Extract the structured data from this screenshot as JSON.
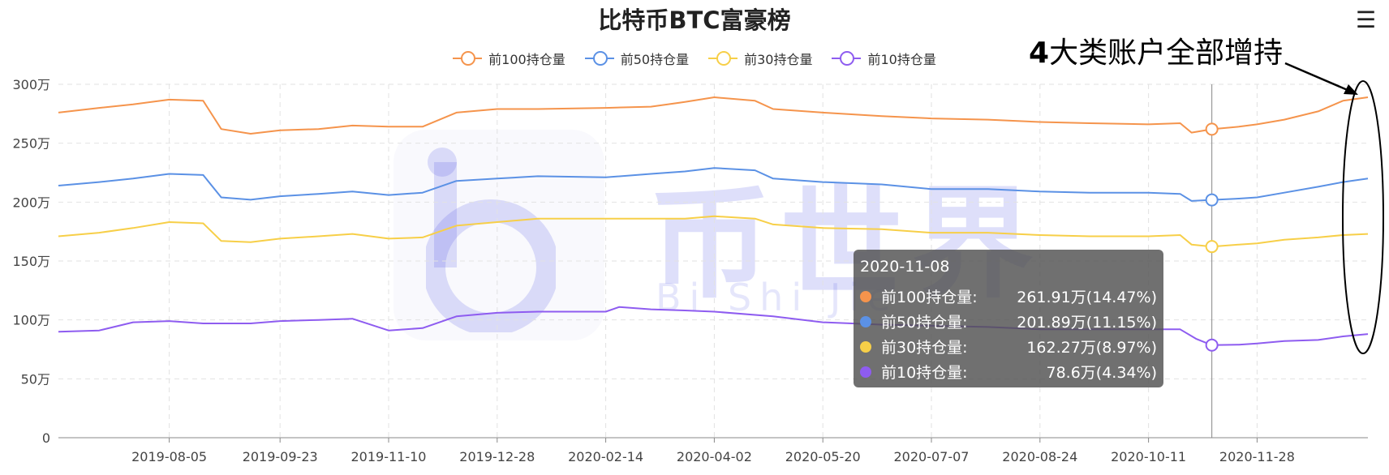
{
  "chart_data": {
    "type": "line",
    "title": "比特币BTC富豪榜",
    "x_tick_labels": [
      "2019-08-05",
      "2019-09-23",
      "2019-11-10",
      "2019-12-28",
      "2020-02-14",
      "2020-04-02",
      "2020-05-20",
      "2020-07-07",
      "2020-08-24",
      "2020-10-11",
      "2020-11-28"
    ],
    "xlim": [
      "2019-06-17",
      "2021-01-16"
    ],
    "y_tick_labels": [
      "0",
      "50万",
      "100万",
      "150万",
      "200万",
      "250万",
      "300万"
    ],
    "ylim": [
      0,
      3000000
    ],
    "grid": true,
    "legend_position": "top",
    "series": [
      {
        "name": "前100持仓量",
        "color": "#f5944c",
        "points": [
          [
            "2019-06-17",
            2760000
          ],
          [
            "2019-07-05",
            2800000
          ],
          [
            "2019-07-20",
            2830000
          ],
          [
            "2019-08-05",
            2870000
          ],
          [
            "2019-08-20",
            2860000
          ],
          [
            "2019-08-28",
            2620000
          ],
          [
            "2019-09-10",
            2580000
          ],
          [
            "2019-09-23",
            2610000
          ],
          [
            "2019-10-10",
            2620000
          ],
          [
            "2019-10-25",
            2650000
          ],
          [
            "2019-11-10",
            2640000
          ],
          [
            "2019-11-25",
            2640000
          ],
          [
            "2019-12-10",
            2760000
          ],
          [
            "2019-12-28",
            2790000
          ],
          [
            "2020-01-15",
            2790000
          ],
          [
            "2020-02-14",
            2800000
          ],
          [
            "2020-03-05",
            2810000
          ],
          [
            "2020-03-20",
            2850000
          ],
          [
            "2020-04-02",
            2890000
          ],
          [
            "2020-04-20",
            2860000
          ],
          [
            "2020-04-28",
            2790000
          ],
          [
            "2020-05-20",
            2760000
          ],
          [
            "2020-06-15",
            2730000
          ],
          [
            "2020-07-07",
            2710000
          ],
          [
            "2020-08-01",
            2700000
          ],
          [
            "2020-08-24",
            2680000
          ],
          [
            "2020-09-15",
            2670000
          ],
          [
            "2020-10-11",
            2660000
          ],
          [
            "2020-10-25",
            2670000
          ],
          [
            "2020-10-30",
            2590000
          ],
          [
            "2020-11-08",
            2619100
          ],
          [
            "2020-11-20",
            2640000
          ],
          [
            "2020-11-28",
            2660000
          ],
          [
            "2020-12-10",
            2700000
          ],
          [
            "2020-12-25",
            2770000
          ],
          [
            "2021-01-05",
            2860000
          ],
          [
            "2021-01-16",
            2890000
          ]
        ]
      },
      {
        "name": "前50持仓量",
        "color": "#5b91e5",
        "points": [
          [
            "2019-06-17",
            2140000
          ],
          [
            "2019-07-05",
            2170000
          ],
          [
            "2019-07-20",
            2200000
          ],
          [
            "2019-08-05",
            2240000
          ],
          [
            "2019-08-20",
            2230000
          ],
          [
            "2019-08-28",
            2040000
          ],
          [
            "2019-09-10",
            2020000
          ],
          [
            "2019-09-23",
            2050000
          ],
          [
            "2019-10-10",
            2070000
          ],
          [
            "2019-10-25",
            2090000
          ],
          [
            "2019-11-10",
            2060000
          ],
          [
            "2019-11-25",
            2080000
          ],
          [
            "2019-12-10",
            2180000
          ],
          [
            "2019-12-28",
            2200000
          ],
          [
            "2020-01-15",
            2220000
          ],
          [
            "2020-02-14",
            2210000
          ],
          [
            "2020-03-05",
            2240000
          ],
          [
            "2020-03-20",
            2260000
          ],
          [
            "2020-04-02",
            2290000
          ],
          [
            "2020-04-20",
            2270000
          ],
          [
            "2020-04-28",
            2200000
          ],
          [
            "2020-05-20",
            2170000
          ],
          [
            "2020-06-15",
            2150000
          ],
          [
            "2020-07-07",
            2110000
          ],
          [
            "2020-08-01",
            2110000
          ],
          [
            "2020-08-24",
            2090000
          ],
          [
            "2020-09-15",
            2080000
          ],
          [
            "2020-10-11",
            2080000
          ],
          [
            "2020-10-25",
            2070000
          ],
          [
            "2020-10-30",
            2010000
          ],
          [
            "2020-11-08",
            2018900
          ],
          [
            "2020-11-20",
            2030000
          ],
          [
            "2020-11-28",
            2040000
          ],
          [
            "2020-12-10",
            2080000
          ],
          [
            "2020-12-25",
            2130000
          ],
          [
            "2021-01-05",
            2170000
          ],
          [
            "2021-01-16",
            2200000
          ]
        ]
      },
      {
        "name": "前30持仓量",
        "color": "#f7cf48",
        "points": [
          [
            "2019-06-17",
            1710000
          ],
          [
            "2019-07-05",
            1740000
          ],
          [
            "2019-07-20",
            1780000
          ],
          [
            "2019-08-05",
            1830000
          ],
          [
            "2019-08-20",
            1820000
          ],
          [
            "2019-08-28",
            1670000
          ],
          [
            "2019-09-10",
            1660000
          ],
          [
            "2019-09-23",
            1690000
          ],
          [
            "2019-10-10",
            1710000
          ],
          [
            "2019-10-25",
            1730000
          ],
          [
            "2019-11-10",
            1690000
          ],
          [
            "2019-11-25",
            1700000
          ],
          [
            "2019-12-10",
            1800000
          ],
          [
            "2019-12-28",
            1830000
          ],
          [
            "2020-01-15",
            1860000
          ],
          [
            "2020-02-14",
            1860000
          ],
          [
            "2020-03-05",
            1860000
          ],
          [
            "2020-03-20",
            1860000
          ],
          [
            "2020-04-02",
            1880000
          ],
          [
            "2020-04-20",
            1860000
          ],
          [
            "2020-04-28",
            1810000
          ],
          [
            "2020-05-20",
            1780000
          ],
          [
            "2020-06-15",
            1770000
          ],
          [
            "2020-07-07",
            1740000
          ],
          [
            "2020-08-01",
            1740000
          ],
          [
            "2020-08-24",
            1720000
          ],
          [
            "2020-09-15",
            1710000
          ],
          [
            "2020-10-11",
            1710000
          ],
          [
            "2020-10-25",
            1720000
          ],
          [
            "2020-10-30",
            1640000
          ],
          [
            "2020-11-08",
            1622700
          ],
          [
            "2020-11-20",
            1640000
          ],
          [
            "2020-11-28",
            1650000
          ],
          [
            "2020-12-10",
            1680000
          ],
          [
            "2020-12-25",
            1700000
          ],
          [
            "2021-01-05",
            1720000
          ],
          [
            "2021-01-16",
            1730000
          ]
        ]
      },
      {
        "name": "前10持仓量",
        "color": "#8e5cf0",
        "points": [
          [
            "2019-06-17",
            900000
          ],
          [
            "2019-07-05",
            910000
          ],
          [
            "2019-07-20",
            980000
          ],
          [
            "2019-08-05",
            990000
          ],
          [
            "2019-08-20",
            970000
          ],
          [
            "2019-09-10",
            970000
          ],
          [
            "2019-09-23",
            990000
          ],
          [
            "2019-10-10",
            1000000
          ],
          [
            "2019-10-25",
            1010000
          ],
          [
            "2019-11-10",
            910000
          ],
          [
            "2019-11-25",
            930000
          ],
          [
            "2019-12-10",
            1030000
          ],
          [
            "2019-12-28",
            1060000
          ],
          [
            "2020-01-15",
            1070000
          ],
          [
            "2020-02-14",
            1070000
          ],
          [
            "2020-02-20",
            1110000
          ],
          [
            "2020-03-05",
            1090000
          ],
          [
            "2020-03-20",
            1080000
          ],
          [
            "2020-04-02",
            1070000
          ],
          [
            "2020-04-28",
            1030000
          ],
          [
            "2020-05-20",
            980000
          ],
          [
            "2020-06-15",
            960000
          ],
          [
            "2020-07-07",
            950000
          ],
          [
            "2020-08-01",
            940000
          ],
          [
            "2020-08-24",
            920000
          ],
          [
            "2020-09-15",
            920000
          ],
          [
            "2020-10-11",
            920000
          ],
          [
            "2020-10-25",
            920000
          ],
          [
            "2020-11-01",
            840000
          ],
          [
            "2020-11-08",
            786000
          ],
          [
            "2020-11-20",
            790000
          ],
          [
            "2020-11-28",
            800000
          ],
          [
            "2020-12-10",
            820000
          ],
          [
            "2020-12-25",
            830000
          ],
          [
            "2021-01-05",
            860000
          ],
          [
            "2021-01-16",
            880000
          ]
        ]
      }
    ],
    "tooltip": {
      "date": "2020-11-08",
      "rows": [
        {
          "label": "前100持仓量:",
          "value": "261.91万(14.47%)",
          "color": "#f5944c"
        },
        {
          "label": "前50持仓量:",
          "value": "201.89万(11.15%)",
          "color": "#5b91e5"
        },
        {
          "label": "前30持仓量:",
          "value": "162.27万(8.97%)",
          "color": "#f7cf48"
        },
        {
          "label": "前10持仓量:",
          "value": "78.6万(4.34%)",
          "color": "#8e5cf0"
        }
      ]
    },
    "annotation": {
      "prefix": "4",
      "text": "大类账户全部增持"
    }
  },
  "watermark": {
    "text": "币世界",
    "subtext": "Bi Shi Jie"
  },
  "menu_icon": "hamburger-menu-icon"
}
